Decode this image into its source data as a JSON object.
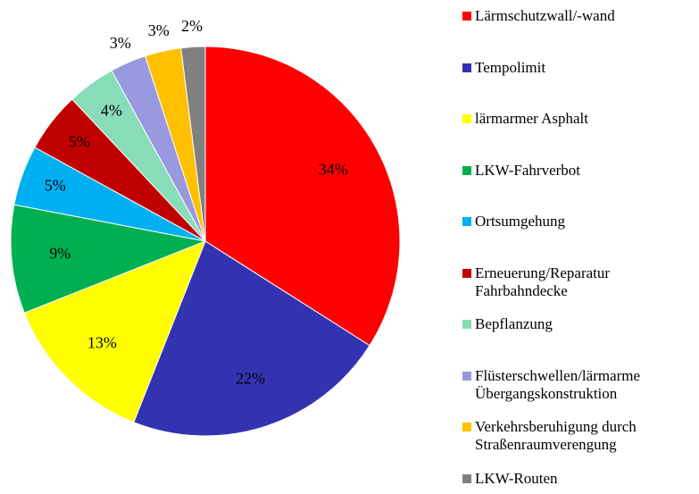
{
  "chart_data": {
    "type": "pie",
    "categories": [
      "Lärmschutzwall/-wand",
      "Tempolimit",
      "lärmarmer Asphalt",
      "LKW-Fahrverbot",
      "Ortsumgehung",
      "Erneuerung/Reparatur Fahrbahndecke",
      "Bepflanzung",
      "Flüsterschwellen/lärmarme Übergangskonstruktion",
      "Verkehrsberuhigung durch Straßenraumverengung",
      "LKW-Routen"
    ],
    "values": [
      34,
      22,
      13,
      9,
      5,
      5,
      4,
      3,
      3,
      2
    ],
    "value_labels": [
      "34%",
      "22%",
      "13%",
      "9%",
      "5%",
      "5%",
      "4%",
      "3%",
      "3%",
      "2%"
    ],
    "colors": [
      "#ff0000",
      "#3333b2",
      "#ffff00",
      "#00b050",
      "#00b0f0",
      "#c00000",
      "#88dcb8",
      "#9999e0",
      "#ffc000",
      "#808080"
    ],
    "legend": "right"
  }
}
